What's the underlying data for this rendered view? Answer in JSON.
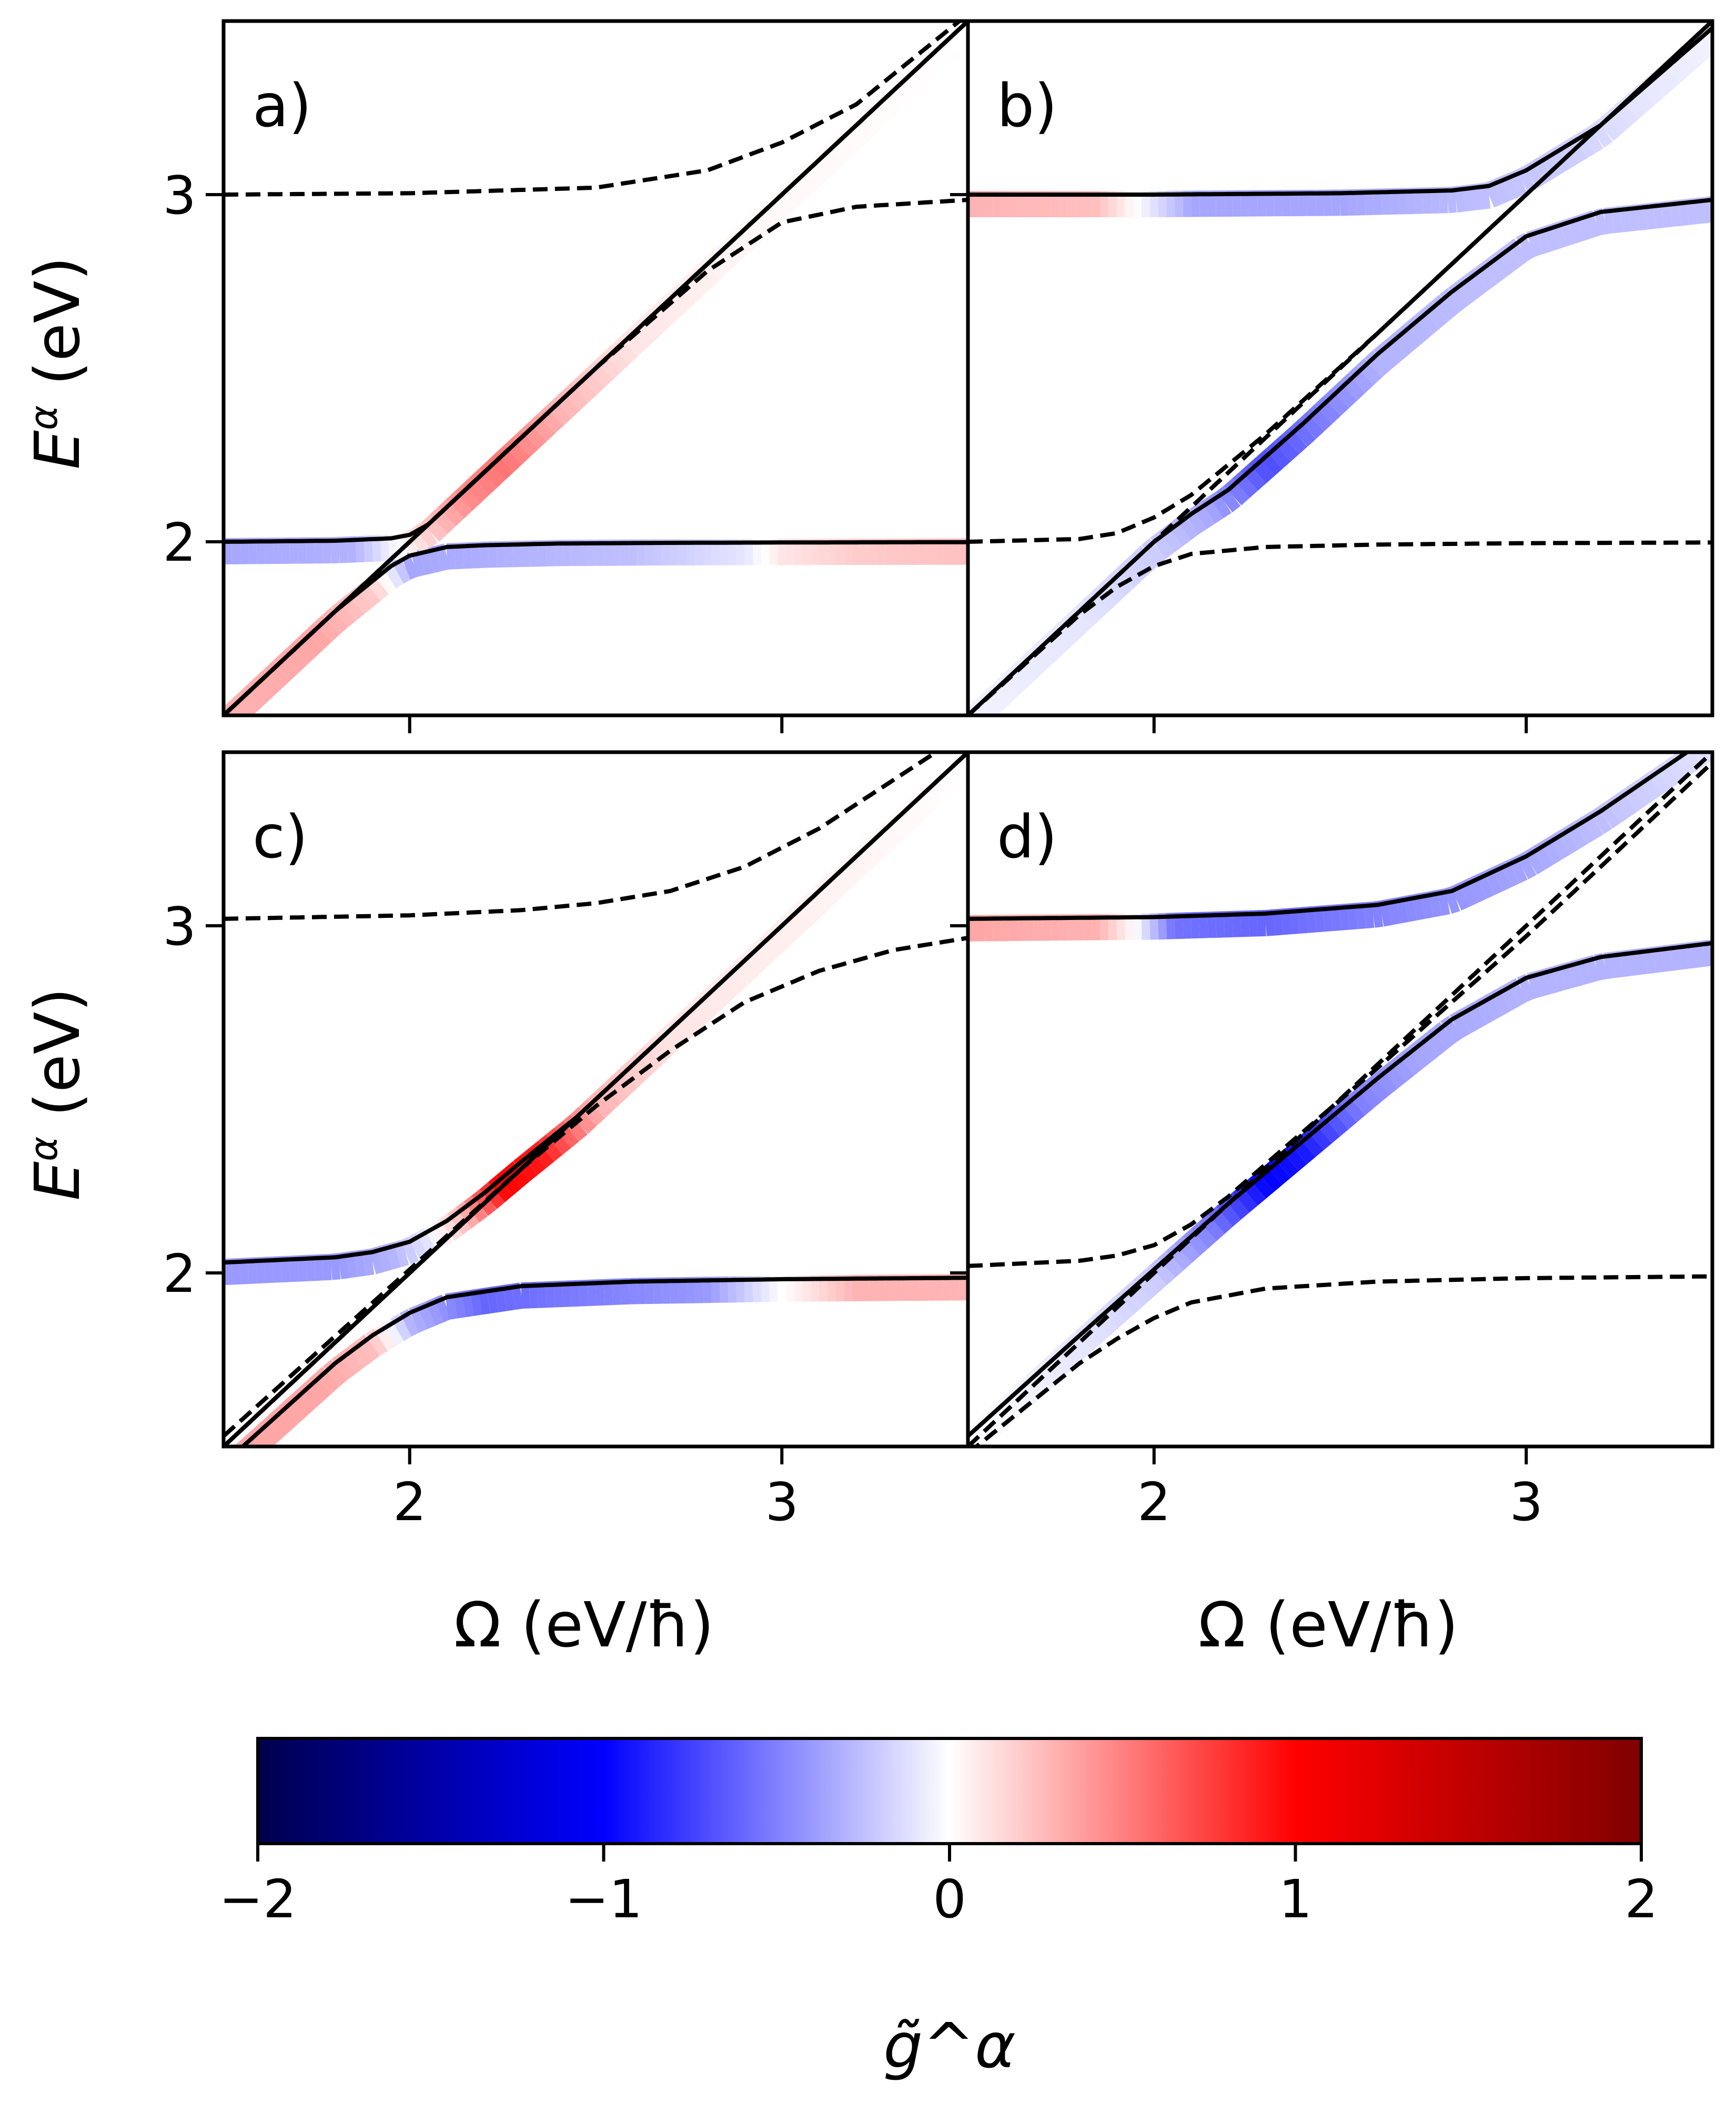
{
  "chart_data": {
    "type": "line",
    "layout": "2x2 grid of panels with shared axes and a shared horizontal colorbar",
    "x_axis": {
      "label": "Ω (eV/ħ)",
      "lim": [
        1.5,
        3.5
      ],
      "ticks": [
        2,
        3
      ],
      "tick_labels": [
        "2",
        "3"
      ]
    },
    "y_axis": {
      "label_main": "E",
      "label_sup": "α",
      "label_rest": " (eV)",
      "lim": [
        1.5,
        3.5
      ],
      "ticks": [
        2,
        3
      ],
      "tick_labels": [
        "2",
        "3"
      ]
    },
    "line_styles": {
      "dressed_polariton_bands": "solid black",
      "bare_polariton_bands": "dashed black",
      "photon_line": "E = ħΩ, solid black in a) and c), dashed black in b) and d)",
      "color_underlay": "thick band colored by g̃^α"
    },
    "colorbar": {
      "label": "g̃^α",
      "min": -2,
      "max": 2,
      "ticks": [
        -2,
        -1,
        0,
        1,
        2
      ],
      "tick_labels": [
        "−2",
        "−1",
        "0",
        "1",
        "2"
      ],
      "colormap": "seismic",
      "colors": [
        "#00004d",
        "#0000ff",
        "#ffffff",
        "#ff0000",
        "#800000"
      ]
    },
    "panels": [
      {
        "tag": "a)",
        "dressed_bands": [
          {
            "name": "lower",
            "x": [
              1.5,
              1.8,
              1.95,
              2.0,
              2.1,
              2.2,
              2.4,
              2.7,
              3.0,
              3.5
            ],
            "y": [
              1.5,
              1.8,
              1.93,
              1.96,
              1.985,
              1.99,
              1.995,
              1.997,
              1.998,
              1.999
            ]
          },
          {
            "name": "middle",
            "x": [
              1.5,
              1.8,
              1.95,
              2.0,
              2.05,
              2.15,
              2.3,
              2.6,
              3.0,
              3.5
            ],
            "y": [
              2.0,
              2.003,
              2.01,
              2.02,
              2.05,
              2.15,
              2.3,
              2.6,
              3.0,
              3.5
            ]
          },
          {
            "name": "upper",
            "x": [
              1.5,
              2.0,
              3.0,
              3.5
            ],
            "y": [
              1.5,
              2.0,
              3.0,
              3.5
            ]
          }
        ],
        "bare_bands": [
          {
            "name": "lower",
            "x": [
              1.5,
              2.0,
              2.5,
              2.8,
              3.0,
              3.2,
              3.5
            ],
            "y": [
              1.5,
              2.0,
              2.5,
              2.78,
              2.92,
              2.965,
              2.985
            ]
          },
          {
            "name": "upper",
            "x": [
              1.5,
              2.0,
              2.5,
              2.8,
              3.0,
              3.2,
              3.5
            ],
            "y": [
              3.0,
              3.004,
              3.02,
              3.07,
              3.15,
              3.26,
              3.52
            ]
          },
          {
            "name": "photon",
            "x": [
              1.5,
              3.5
            ],
            "y": [
              1.5,
              3.5
            ]
          }
        ],
        "g_tilde": {
          "lower": {
            "x": [
              1.5,
              1.75,
              1.9,
              2.0,
              2.3,
              2.6,
              2.9,
              3.0,
              3.2,
              3.5
            ],
            "g": [
              0.3,
              0.35,
              0.2,
              -0.35,
              -0.3,
              -0.25,
              -0.1,
              0.1,
              0.2,
              0.25
            ]
          },
          "middle": {
            "x": [
              1.5,
              1.85,
              1.95,
              2.05,
              2.15,
              2.25,
              2.4,
              2.6,
              2.9,
              3.5
            ],
            "g": [
              -0.35,
              -0.3,
              -0.05,
              0.2,
              0.45,
              0.55,
              0.3,
              0.1,
              0.03,
              0.0
            ]
          }
        }
      },
      {
        "tag": "b)",
        "dressed_bands": [
          {
            "name": "lower",
            "x": [
              1.5,
              1.8,
              2.0,
              2.1,
              2.2,
              2.4,
              2.6,
              2.8,
              3.0,
              3.2,
              3.5
            ],
            "y": [
              1.5,
              1.8,
              2.0,
              2.08,
              2.15,
              2.34,
              2.54,
              2.72,
              2.88,
              2.95,
              2.985
            ]
          },
          {
            "name": "upper",
            "x": [
              1.5,
              2.0,
              2.5,
              2.8,
              2.9,
              3.0,
              3.2,
              3.5
            ],
            "y": [
              3.0,
              3.0,
              3.004,
              3.012,
              3.025,
              3.07,
              3.2,
              3.48
            ]
          }
        ],
        "bare_bands": [
          {
            "name": "lower",
            "x": [
              1.5,
              1.8,
              1.9,
              2.0,
              2.1,
              2.3,
              2.6,
              3.0,
              3.5
            ],
            "y": [
              1.5,
              1.79,
              1.87,
              1.93,
              1.965,
              1.985,
              1.992,
              1.996,
              1.998
            ]
          },
          {
            "name": "upper",
            "x": [
              1.5,
              1.8,
              1.9,
              2.0,
              2.1,
              2.3,
              2.6,
              3.0,
              3.5
            ],
            "y": [
              2.0,
              2.008,
              2.025,
              2.07,
              2.135,
              2.31,
              2.6,
              3.0,
              3.5
            ]
          },
          {
            "name": "photon",
            "x": [
              1.5,
              3.5
            ],
            "y": [
              1.5,
              3.5
            ]
          }
        ],
        "g_tilde": {
          "lower": {
            "x": [
              1.5,
              1.8,
              2.0,
              2.15,
              2.3,
              2.45,
              2.6,
              2.9,
              3.2,
              3.5
            ],
            "g": [
              -0.05,
              -0.1,
              -0.2,
              -0.35,
              -0.7,
              -0.5,
              -0.3,
              -0.25,
              -0.25,
              -0.25
            ]
          },
          "upper": {
            "x": [
              1.5,
              1.85,
              1.95,
              2.1,
              2.5,
              2.9,
              3.1,
              3.3,
              3.5
            ],
            "g": [
              0.3,
              0.25,
              0.0,
              -0.35,
              -0.35,
              -0.25,
              -0.2,
              -0.1,
              -0.05
            ]
          }
        }
      },
      {
        "tag": "c)",
        "dressed_bands": [
          {
            "name": "lower",
            "x": [
              1.5,
              1.8,
              1.9,
              2.0,
              2.1,
              2.3,
              2.6,
              3.0,
              3.5
            ],
            "y": [
              1.45,
              1.74,
              1.82,
              1.885,
              1.93,
              1.962,
              1.975,
              1.982,
              1.986
            ]
          },
          {
            "name": "middle",
            "x": [
              1.5,
              1.8,
              1.9,
              2.0,
              2.1,
              2.2,
              2.3,
              2.45,
              2.7,
              3.0,
              3.5
            ],
            "y": [
              2.03,
              2.045,
              2.06,
              2.09,
              2.15,
              2.23,
              2.32,
              2.45,
              2.7,
              3.0,
              3.5
            ]
          },
          {
            "name": "upper",
            "x": [
              1.5,
              2.0,
              3.0,
              3.5
            ],
            "y": [
              1.5,
              2.0,
              3.0,
              3.5
            ]
          }
        ],
        "bare_bands": [
          {
            "name": "lower",
            "x": [
              1.5,
              2.0,
              2.3,
              2.5,
              2.7,
              2.9,
              3.1,
              3.3,
              3.5
            ],
            "y": [
              1.53,
              2.01,
              2.3,
              2.48,
              2.64,
              2.78,
              2.87,
              2.93,
              2.965
            ]
          },
          {
            "name": "upper",
            "x": [
              1.5,
              2.0,
              2.3,
              2.5,
              2.7,
              2.9,
              3.1,
              3.3,
              3.5
            ],
            "y": [
              3.02,
              3.03,
              3.045,
              3.065,
              3.1,
              3.17,
              3.28,
              3.42,
              3.56
            ]
          },
          {
            "name": "photon",
            "x": [
              1.5,
              3.5
            ],
            "y": [
              1.5,
              3.5
            ]
          }
        ],
        "g_tilde": {
          "lower": {
            "x": [
              1.5,
              1.75,
              1.9,
              2.0,
              2.2,
              2.5,
              2.8,
              3.0,
              3.2,
              3.5
            ],
            "g": [
              0.35,
              0.35,
              0.25,
              -0.3,
              -0.6,
              -0.5,
              -0.4,
              0.0,
              0.3,
              0.3
            ]
          },
          "middle": {
            "x": [
              1.5,
              1.8,
              1.95,
              2.05,
              2.15,
              2.25,
              2.35,
              2.5,
              2.7,
              3.5
            ],
            "g": [
              -0.4,
              -0.4,
              -0.3,
              -0.1,
              0.3,
              1.0,
              0.9,
              0.3,
              0.1,
              0.0
            ]
          }
        }
      },
      {
        "tag": "d)",
        "dressed_bands": [
          {
            "name": "lower",
            "x": [
              1.5,
              1.8,
              2.0,
              2.2,
              2.4,
              2.6,
              2.8,
              3.0,
              3.2,
              3.5
            ],
            "y": [
              1.53,
              1.82,
              2.01,
              2.2,
              2.38,
              2.56,
              2.73,
              2.85,
              2.91,
              2.95
            ]
          },
          {
            "name": "upper",
            "x": [
              1.5,
              2.0,
              2.3,
              2.6,
              2.8,
              3.0,
              3.2,
              3.5
            ],
            "y": [
              3.02,
              3.025,
              3.035,
              3.06,
              3.1,
              3.2,
              3.33,
              3.55
            ]
          }
        ],
        "bare_bands": [
          {
            "name": "lower",
            "x": [
              1.5,
              1.8,
              1.9,
              2.0,
              2.1,
              2.3,
              2.6,
              3.0,
              3.5
            ],
            "y": [
              1.48,
              1.74,
              1.81,
              1.87,
              1.915,
              1.955,
              1.975,
              1.985,
              1.99
            ]
          },
          {
            "name": "upper",
            "x": [
              1.5,
              1.8,
              1.9,
              2.0,
              2.1,
              2.2,
              2.35,
              2.6,
              3.0,
              3.5
            ],
            "y": [
              2.02,
              2.035,
              2.05,
              2.08,
              2.14,
              2.22,
              2.36,
              2.59,
              2.97,
              3.47
            ]
          },
          {
            "name": "photon",
            "x": [
              1.5,
              3.5
            ],
            "y": [
              1.5,
              3.5
            ]
          }
        ],
        "g_tilde": {
          "lower": {
            "x": [
              1.5,
              1.8,
              2.0,
              2.15,
              2.3,
              2.4,
              2.55,
              2.7,
              3.0,
              3.5
            ],
            "g": [
              0.0,
              -0.1,
              -0.2,
              -0.5,
              -1.0,
              -0.9,
              -0.5,
              -0.35,
              -0.3,
              -0.3
            ]
          },
          "upper": {
            "x": [
              1.5,
              1.85,
              1.95,
              2.05,
              2.3,
              2.7,
              3.0,
              3.3,
              3.5
            ],
            "g": [
              0.35,
              0.3,
              0.0,
              -0.55,
              -0.6,
              -0.45,
              -0.35,
              -0.2,
              -0.1
            ]
          }
        }
      }
    ]
  }
}
